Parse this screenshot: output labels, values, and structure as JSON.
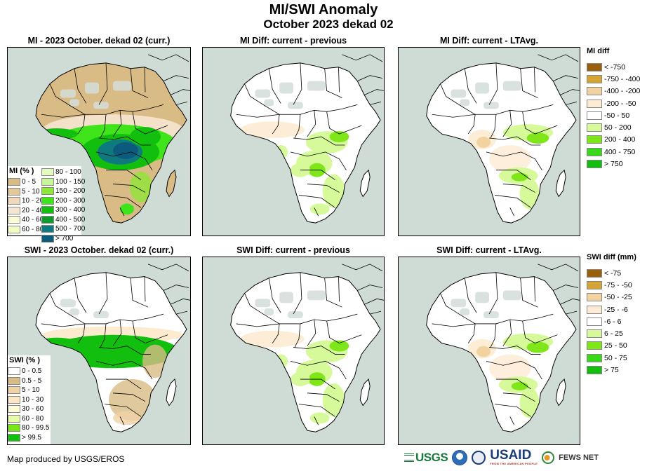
{
  "header": {
    "title": "MI/SWI Anomaly",
    "subtitle": "October 2023 dekad 02"
  },
  "panels": [
    {
      "id": "mi-current",
      "title": "MI - 2023 October. dekad 02 (curr.)",
      "variable": "MI",
      "scheme": "mi_abs"
    },
    {
      "id": "mi-diff-prev",
      "title": "MI Diff: current - previous",
      "variable": "MI",
      "scheme": "diff_prev"
    },
    {
      "id": "mi-diff-lta",
      "title": "MI Diff: current - LTAvg.",
      "variable": "MI",
      "scheme": "diff_lta"
    },
    {
      "id": "swi-current",
      "title": "SWI - 2023 October. dekad 02 (curr.)",
      "variable": "SWI",
      "scheme": "swi_abs"
    },
    {
      "id": "swi-diff-prev",
      "title": "SWI Diff: current - previous",
      "variable": "SWI",
      "scheme": "diff_prev"
    },
    {
      "id": "swi-diff-lta",
      "title": "SWI Diff: current - LTAvg.",
      "variable": "SWI",
      "scheme": "diff_lta"
    }
  ],
  "legends": {
    "mi_abs": {
      "title": "MI (% )",
      "items": [
        {
          "label": "0 - 5",
          "color": "#d9bb86"
        },
        {
          "label": "5 - 10",
          "color": "#e3c89c"
        },
        {
          "label": "10 - 20",
          "color": "#efd9bb"
        },
        {
          "label": "20 - 40",
          "color": "#f6e6d0"
        },
        {
          "label": "40 - 60",
          "color": "#fdfcd6"
        },
        {
          "label": "60 - 80",
          "color": "#f0fcc4"
        },
        {
          "label": "80 - 100",
          "color": "#e4fcc4"
        },
        {
          "label": "100 - 150",
          "color": "#c8f59a"
        },
        {
          "label": "150 - 200",
          "color": "#8ee636"
        },
        {
          "label": "200 - 300",
          "color": "#3fe41b"
        },
        {
          "label": "300 - 400",
          "color": "#12bf0f"
        },
        {
          "label": "400 - 500",
          "color": "#0d9a2a"
        },
        {
          "label": "500 - 700",
          "color": "#0e7a80"
        },
        {
          "label": "> 700",
          "color": "#0c5a7c"
        }
      ]
    },
    "swi_abs": {
      "title": "SWI (% )",
      "items": [
        {
          "label": "0 - 0.5",
          "color": "#ffffff"
        },
        {
          "label": "0.5 - 5",
          "color": "#d9bb86"
        },
        {
          "label": "5 - 10",
          "color": "#f0d2a5"
        },
        {
          "label": "10 - 30",
          "color": "#fde6c4"
        },
        {
          "label": "30 - 60",
          "color": "#fdfcd6"
        },
        {
          "label": "60 - 80",
          "color": "#e6fca8"
        },
        {
          "label": "80 - 99.5",
          "color": "#78e61a"
        },
        {
          "label": "> 99.5",
          "color": "#12bf0f"
        }
      ]
    },
    "mi_diff": {
      "title": "MI diff",
      "items": [
        {
          "label": "< -750",
          "color": "#9a5f0a"
        },
        {
          "label": "-750 - -400",
          "color": "#d4a436"
        },
        {
          "label": "-400 - -200",
          "color": "#f2d3a0"
        },
        {
          "label": "-200 - -50",
          "color": "#fdebd3"
        },
        {
          "label": "-50 - 50",
          "color": "#ffffff"
        },
        {
          "label": "50 - 200",
          "color": "#d6fa9a"
        },
        {
          "label": "200 - 400",
          "color": "#7fe61a"
        },
        {
          "label": "400 - 750",
          "color": "#3ad81a"
        },
        {
          "label": "> 750",
          "color": "#12bf0f"
        }
      ]
    },
    "swi_diff": {
      "title": "SWI diff (mm)",
      "items": [
        {
          "label": "< -75",
          "color": "#9a5f0a"
        },
        {
          "label": "-75 - -50",
          "color": "#d4a436"
        },
        {
          "label": "-50 - -25",
          "color": "#f2d3a0"
        },
        {
          "label": "-25 - -6",
          "color": "#fdebd3"
        },
        {
          "label": "-6 - 6",
          "color": "#ffffff"
        },
        {
          "label": "6 - 25",
          "color": "#d6fa9a"
        },
        {
          "label": "25 - 50",
          "color": "#7fe61a"
        },
        {
          "label": "50 - 75",
          "color": "#3ad81a"
        },
        {
          "label": "> 75",
          "color": "#12bf0f"
        }
      ]
    }
  },
  "colors": {
    "ocean": "#cfdcd6",
    "nodata": "#d3ddd9",
    "border": "#000000"
  },
  "footer": {
    "credit": "Map produced by USGS/EROS",
    "logos": {
      "usgs": "USGS",
      "usgs_tagline": "science for a changing world",
      "usaid": "USAID",
      "usaid_tagline": "FROM THE AMERICAN PEOPLE",
      "fews": "FEWS NET"
    }
  }
}
